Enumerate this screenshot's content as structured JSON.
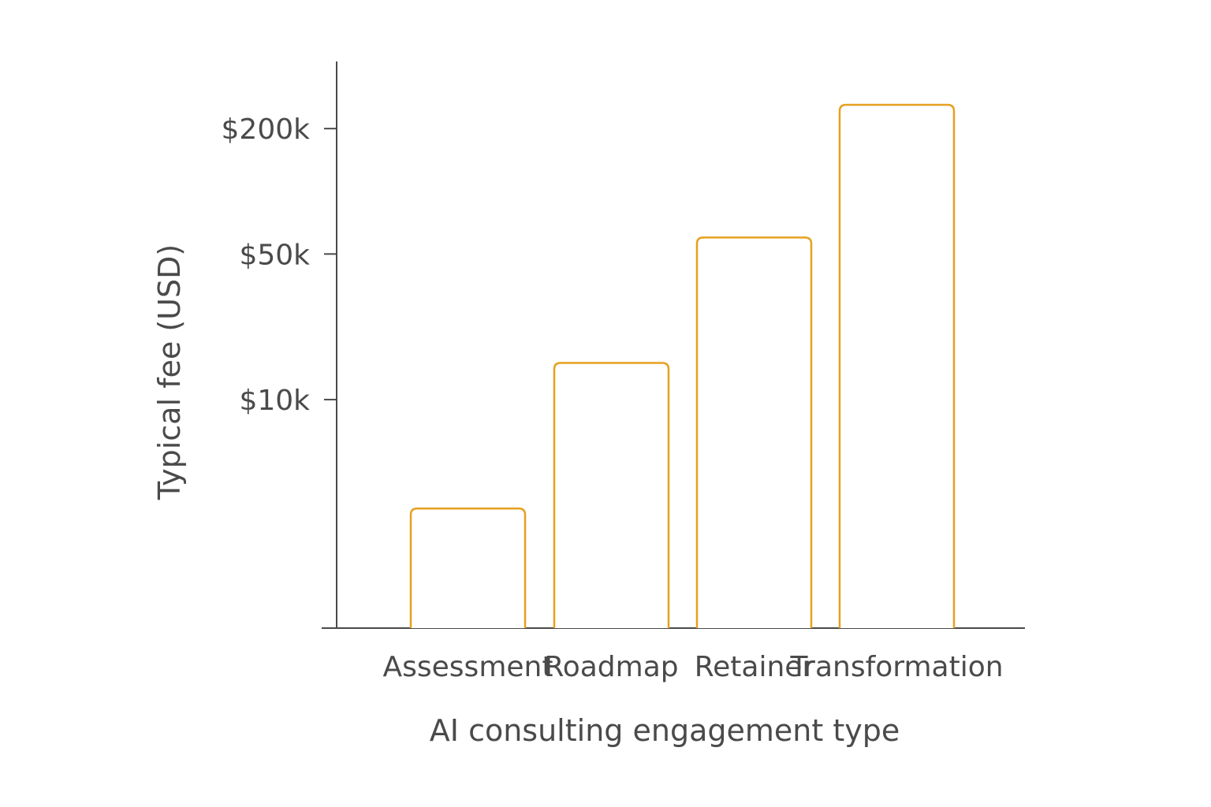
{
  "chart_data": {
    "type": "bar",
    "title": "",
    "xlabel": "AI consulting engagement type",
    "ylabel": "Typical fee (USD)",
    "y_scale": "log",
    "ylim": [
      800,
      420000
    ],
    "y_ticks": [
      {
        "value": 10000,
        "label": "$10k"
      },
      {
        "value": 50000,
        "label": "$50k"
      },
      {
        "value": 200000,
        "label": "$200k"
      }
    ],
    "categories": [
      "Assessment",
      "Roadmap",
      "Retainer",
      "Transformation"
    ],
    "values": [
      3000,
      15000,
      60000,
      260000
    ],
    "bar_color": "#E6A020",
    "axis_color": "#4a4a4a",
    "grid": false,
    "legend": "none"
  }
}
